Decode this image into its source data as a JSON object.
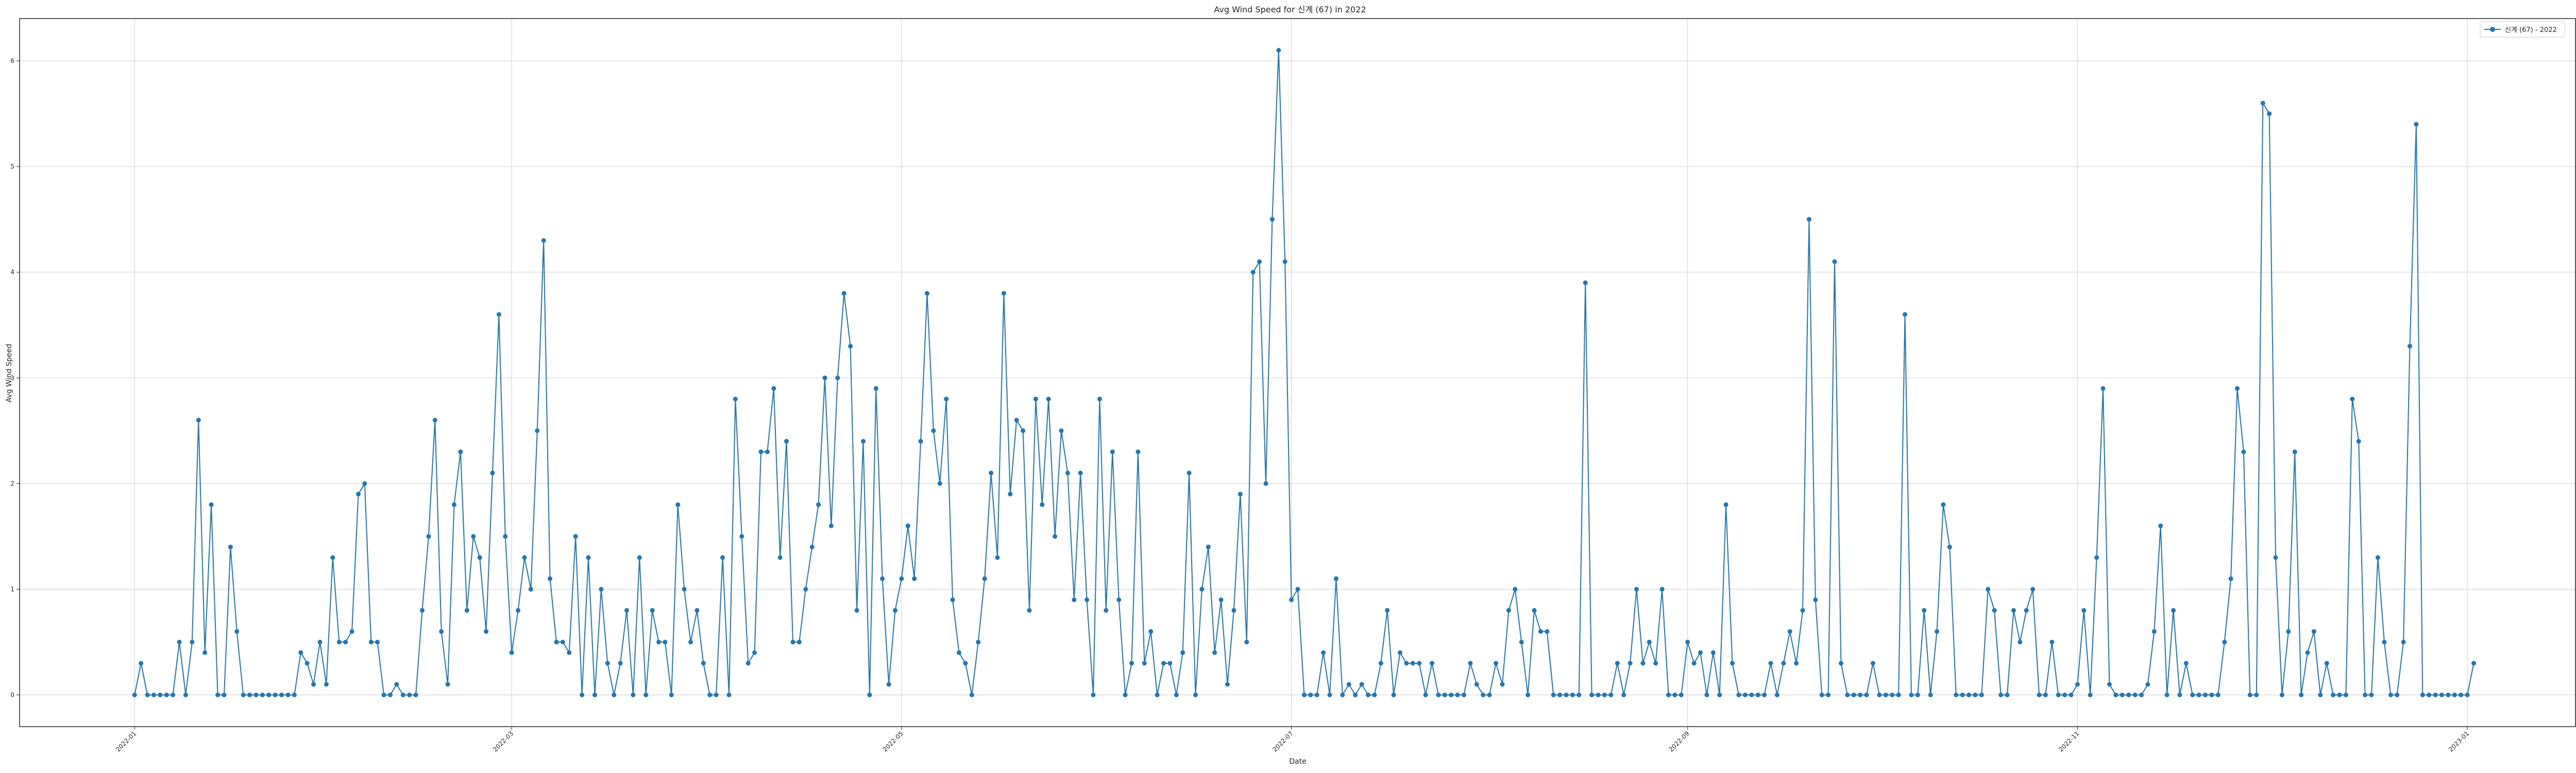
{
  "chart_data": {
    "type": "line",
    "title": "Avg Wind Speed for 신계 (67) in 2022",
    "xlabel": "Date",
    "ylabel": "Avg Wind Speed",
    "x_start": "2022-01-01",
    "x_end": "2022-12-31",
    "xlim": [
      "2021-12-14",
      "2023-01-18"
    ],
    "ylim": [
      -0.3,
      6.4
    ],
    "x_ticks": [
      {
        "date": "2022-01-01",
        "label": "2022-01"
      },
      {
        "date": "2022-03-01",
        "label": "2022-03"
      },
      {
        "date": "2022-05-01",
        "label": "2022-05"
      },
      {
        "date": "2022-07-01",
        "label": "2022-07"
      },
      {
        "date": "2022-09-01",
        "label": "2022-09"
      },
      {
        "date": "2022-11-01",
        "label": "2022-11"
      },
      {
        "date": "2023-01-01",
        "label": "2023-01"
      }
    ],
    "y_ticks": [
      0,
      1,
      2,
      3,
      4,
      5,
      6
    ],
    "grid": true,
    "legend_position": "top-right",
    "series": [
      {
        "name": "신계 (67) - 2022",
        "color": "#1f77b4",
        "marker": "circle",
        "values": [
          0,
          0.3,
          0,
          0,
          0,
          0,
          0,
          0.5,
          0,
          0.5,
          2.6,
          0.4,
          1.8,
          0,
          0,
          1.4,
          0.6,
          0,
          0,
          0,
          0,
          0,
          0,
          0,
          0,
          0,
          0.4,
          0.3,
          0.1,
          0.5,
          0.1,
          1.3,
          0.5,
          0.5,
          0.6,
          1.9,
          2.0,
          0.5,
          0.5,
          0,
          0,
          0.1,
          0,
          0,
          0,
          0.8,
          1.5,
          2.6,
          0.6,
          0.1,
          1.8,
          2.3,
          0.8,
          1.5,
          1.3,
          0.6,
          2.1,
          3.6,
          1.5,
          0.4,
          0.8,
          1.3,
          1.0,
          2.5,
          4.3,
          1.1,
          0.5,
          0.5,
          0.4,
          1.5,
          0,
          1.3,
          0,
          1.0,
          0.3,
          0,
          0.3,
          0.8,
          0,
          1.3,
          0,
          0.8,
          0.5,
          0.5,
          0,
          1.8,
          1.0,
          0.5,
          0.8,
          0.3,
          0,
          0,
          1.3,
          0,
          2.8,
          1.5,
          0.3,
          0.4,
          2.3,
          2.3,
          2.9,
          1.3,
          2.4,
          0.5,
          0.5,
          1.0,
          1.4,
          1.8,
          3.0,
          1.6,
          3.0,
          3.8,
          3.3,
          0.8,
          2.4,
          0,
          2.9,
          1.1,
          0.1,
          0.8,
          1.1,
          1.6,
          1.1,
          2.4,
          3.8,
          2.5,
          2.0,
          2.8,
          0.9,
          0.4,
          0.3,
          0,
          0.5,
          1.1,
          2.1,
          1.3,
          3.8,
          1.9,
          2.6,
          2.5,
          0.8,
          2.8,
          1.8,
          2.8,
          1.5,
          2.5,
          2.1,
          0.9,
          2.1,
          0.9,
          0,
          2.8,
          0.8,
          2.3,
          0.9,
          0,
          0.3,
          2.3,
          0.3,
          0.6,
          0,
          0.3,
          0.3,
          0,
          0.4,
          2.1,
          0,
          1.0,
          1.4,
          0.4,
          0.9,
          0.1,
          0.8,
          1.9,
          0.5,
          4.0,
          4.1,
          2.0,
          4.5,
          6.1,
          4.1,
          0.9,
          1.0,
          0,
          0,
          0,
          0.4,
          0,
          1.1,
          0,
          0.1,
          0,
          0.1,
          0,
          0,
          0.3,
          0.8,
          0,
          0.4,
          0.3,
          0.3,
          0.3,
          0,
          0.3,
          0,
          0,
          0,
          0,
          0,
          0.3,
          0.1,
          0,
          0,
          0.3,
          0.1,
          0.8,
          1.0,
          0.5,
          0,
          0.8,
          0.6,
          0.6,
          0,
          0,
          0,
          0,
          0,
          3.9,
          0,
          0,
          0,
          0,
          0.3,
          0,
          0.3,
          1.0,
          0.3,
          0.5,
          0.3,
          1.0,
          0,
          0,
          0,
          0.5,
          0.3,
          0.4,
          0,
          0.4,
          0,
          1.8,
          0.3,
          0,
          0,
          0,
          0,
          0,
          0.3,
          0,
          0.3,
          0.6,
          0.3,
          0.8,
          4.5,
          0.9,
          0,
          0,
          4.1,
          0.3,
          0,
          0,
          0,
          0,
          0.3,
          0,
          0,
          0,
          0,
          3.6,
          0,
          0,
          0.8,
          0,
          0.6,
          1.8,
          1.4,
          0,
          0,
          0,
          0,
          0,
          1.0,
          0.8,
          0,
          0,
          0.8,
          0.5,
          0.8,
          1.0,
          0,
          0,
          0.5,
          0,
          0,
          0,
          0.1,
          0.8,
          0,
          1.3,
          2.9,
          0.1,
          0,
          0,
          0,
          0,
          0,
          0.1,
          0.6,
          1.6,
          0,
          0.8,
          0,
          0.3,
          0,
          0,
          0,
          0,
          0,
          0.5,
          1.1,
          2.9,
          2.3,
          0,
          0,
          5.6,
          5.5,
          1.3,
          0,
          0.6,
          2.3,
          0,
          0.4,
          0.6,
          0,
          0.3,
          0,
          0,
          0,
          2.8,
          2.4,
          0,
          0,
          1.3,
          0.5,
          0,
          0,
          0.5,
          3.3,
          5.4,
          0,
          0,
          0,
          0,
          0,
          0,
          0,
          0,
          0.3
        ]
      }
    ]
  }
}
